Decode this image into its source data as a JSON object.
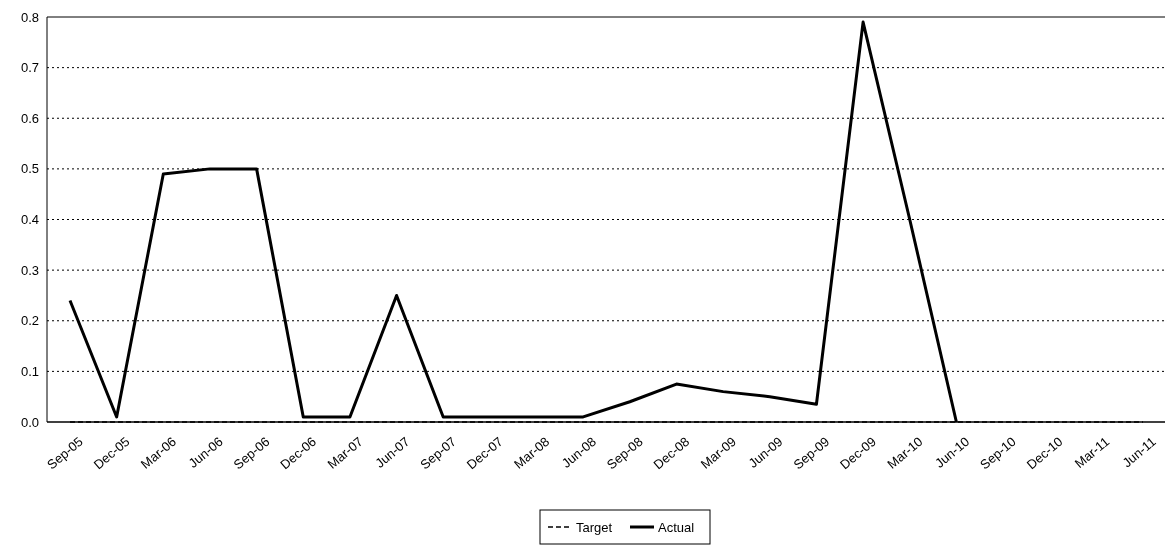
{
  "chart_data": {
    "type": "line",
    "categories": [
      "Sep-05",
      "Dec-05",
      "Mar-06",
      "Jun-06",
      "Sep-06",
      "Dec-06",
      "Mar-07",
      "Jun-07",
      "Sep-07",
      "Dec-07",
      "Mar-08",
      "Jun-08",
      "Sep-08",
      "Dec-08",
      "Mar-09",
      "Jun-09",
      "Sep-09",
      "Dec-09",
      "Mar-10",
      "Jun-10",
      "Sep-10",
      "Dec-10",
      "Mar-11",
      "Jun-11"
    ],
    "series": [
      {
        "name": "Target",
        "color": "#000000",
        "line_style": "dashed",
        "values": [
          0,
          0,
          0,
          0,
          0,
          0,
          0,
          0,
          0,
          0,
          0,
          0,
          0,
          0,
          0,
          0,
          0,
          0,
          0,
          0,
          0,
          0,
          0,
          0
        ]
      },
      {
        "name": "Actual",
        "color": "#000000",
        "line_style": "solid",
        "values": [
          0.24,
          0.01,
          0.49,
          0.5,
          0.5,
          0.01,
          0.01,
          0.25,
          0.01,
          0.01,
          0.01,
          0.01,
          0.04,
          0.075,
          0.06,
          0.05,
          0.035,
          0.79,
          0.4,
          0,
          null,
          null,
          null,
          null
        ]
      }
    ],
    "ylim": [
      0,
      0.8
    ],
    "yticks": [
      {
        "value": 0,
        "label": "0.0"
      },
      0.1,
      0.2,
      0.3,
      0.4,
      0.5,
      0.6,
      0.7,
      0.8
    ],
    "grid": "y",
    "legend": "bottom"
  }
}
